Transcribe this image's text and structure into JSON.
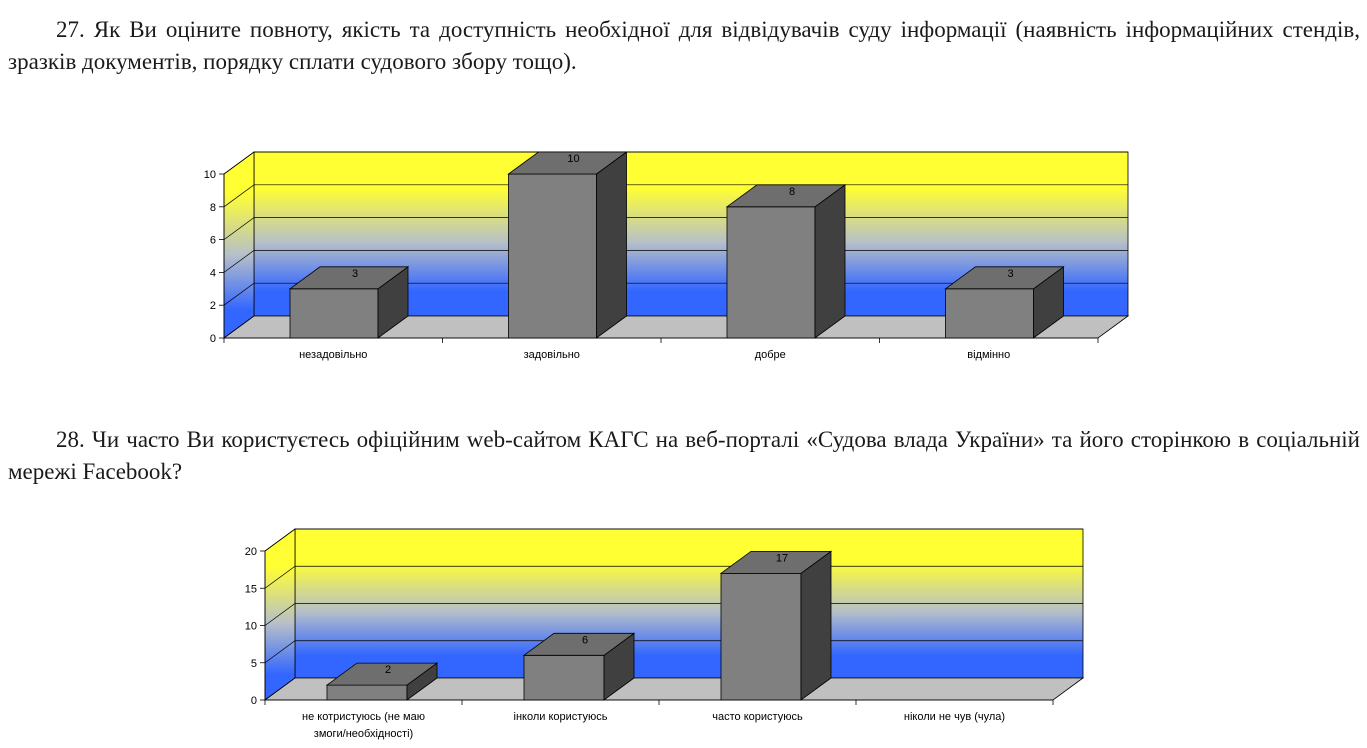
{
  "questions": [
    {
      "text": "27. Як Ви оціните повноту, якість та доступність необхідної для відвідувачів суду інформації (наявність інформаційних стендів, зразків документів, порядку сплати судового збору тощо)."
    },
    {
      "text": "28. Чи часто Ви користуєтесь офіційним web-сайтом КАГС на веб-порталі «Судова влада України» та його сторінкою в соціальній мережі Facebook?"
    }
  ],
  "colors": {
    "wall_top": "#ffff33",
    "wall_bottom": "#3366ff",
    "floor": "#c0c0c0",
    "bar_front": "#808080",
    "bar_top": "#6e6e6e",
    "bar_side": "#404040"
  },
  "chart_data": [
    {
      "type": "bar",
      "categories": [
        "незадовільно",
        "задовільно",
        "добре",
        "відмінно"
      ],
      "values": [
        3,
        10,
        8,
        3
      ],
      "data_labels": [
        "3",
        "10",
        "8",
        "3"
      ],
      "yticks": [
        "0",
        "2",
        "4",
        "6",
        "8",
        "10"
      ],
      "ylim": [
        0,
        10
      ],
      "grid": true,
      "legend": "none"
    },
    {
      "type": "bar",
      "categories": [
        "не котристуюсь (не маю змоги/необхідності)",
        "інколи користуюсь",
        "часто користуюсь",
        "ніколи не чув (чула)"
      ],
      "values": [
        2,
        6,
        17,
        0
      ],
      "data_labels": [
        "2",
        "6",
        "17",
        ""
      ],
      "yticks": [
        "0",
        "5",
        "10",
        "15",
        "20"
      ],
      "ylim": [
        0,
        20
      ],
      "grid": true,
      "legend": "none"
    }
  ]
}
